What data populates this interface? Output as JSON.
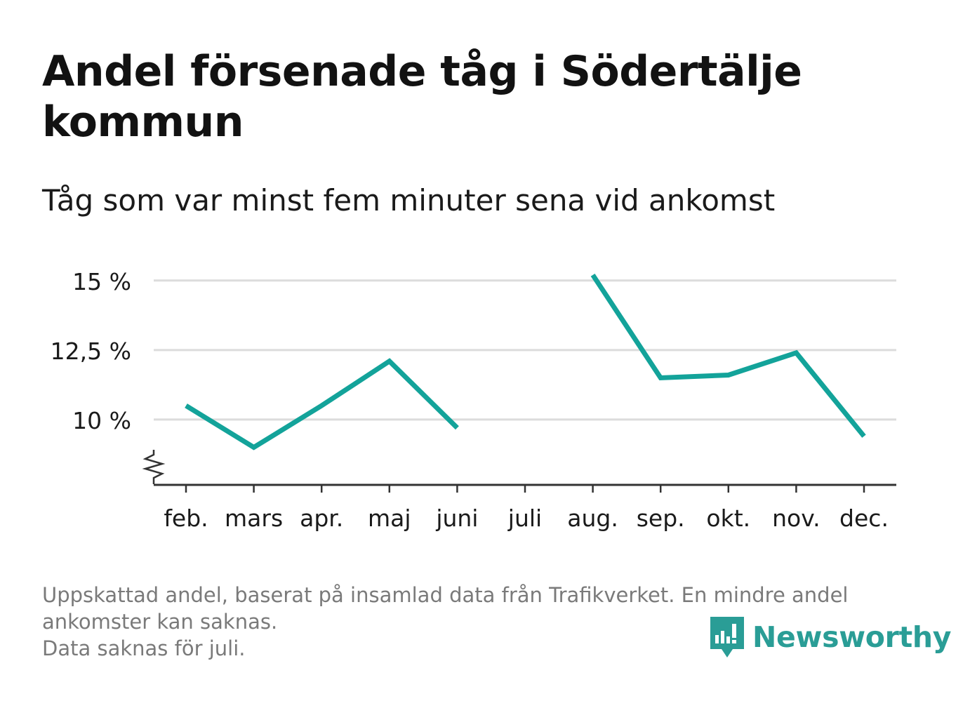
{
  "title": "Andel försenade tåg i Södertälje kommun",
  "subtitle": "Tåg som var minst fem minuter sena vid ankomst",
  "footnote": {
    "line1": "Uppskattad andel, baserat på insamlad data från Trafikverket. En mindre andel",
    "line2": "ankomster kan saknas.",
    "line3": "Data saknas för juli."
  },
  "brand": {
    "name": "Newsworthy",
    "color": "#2a9d96",
    "icon": "newsworthy-logo-icon"
  },
  "colors": {
    "line": "#13a39a",
    "grid": "#dcdcdc",
    "axis": "#333333"
  },
  "chart_data": {
    "type": "line",
    "title": "Andel försenade tåg i Södertälje kommun",
    "subtitle": "Tåg som var minst fem minuter sena vid ankomst",
    "categories": [
      "feb.",
      "mars",
      "apr.",
      "maj",
      "juni",
      "juli",
      "aug.",
      "sep.",
      "okt.",
      "nov.",
      "dec."
    ],
    "series": [
      {
        "values": [
          10.5,
          9.0,
          10.5,
          12.1,
          9.7,
          null,
          15.2,
          11.5,
          11.6,
          12.4,
          9.4
        ]
      }
    ],
    "yticks": [
      {
        "value": 10,
        "label": "10 %"
      },
      {
        "value": 12.5,
        "label": "12,5 %"
      },
      {
        "value": 15,
        "label": "15 %"
      }
    ],
    "ylim": [
      7.65,
      15.5
    ],
    "axis_break": true,
    "grid": true,
    "xlabel": "",
    "ylabel": ""
  }
}
